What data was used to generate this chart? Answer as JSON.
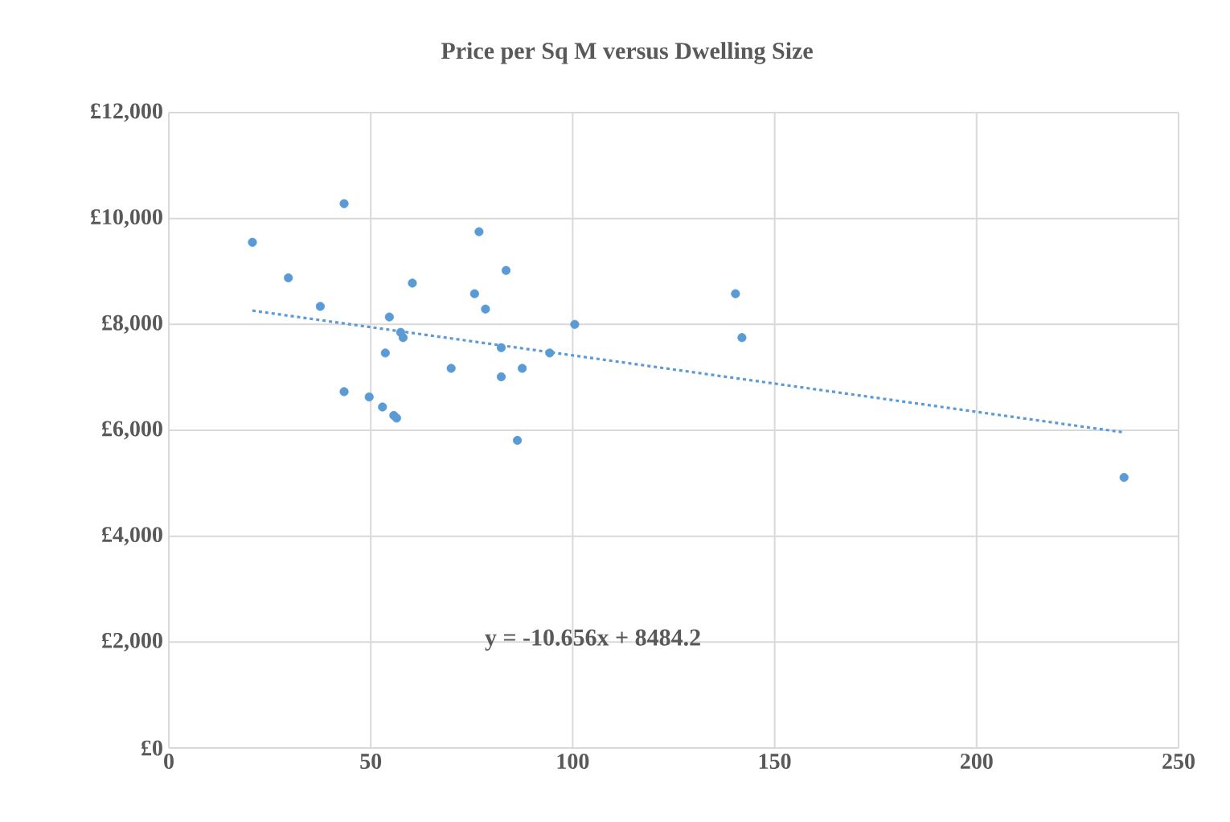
{
  "chart_data": {
    "type": "scatter",
    "title": "Price per Sq M versus Dwelling Size",
    "series": [
      {
        "color": "#5b9bd5",
        "marker": "circle",
        "x": [
          20.7,
          43.4,
          29.6,
          37.5,
          54.6,
          57.4,
          58.0,
          53.6,
          60.3,
          43.4,
          49.6,
          52.9,
          55.7,
          56.4,
          69.9,
          76.8,
          83.5,
          75.7,
          78.4,
          82.3,
          82.3,
          87.5,
          86.3,
          94.3,
          100.5,
          140.3,
          141.9,
          236.5
        ],
        "values": [
          9550,
          10280,
          8880,
          8340,
          8140,
          7850,
          7750,
          7460,
          8780,
          6730,
          6630,
          6440,
          6280,
          6230,
          7170,
          9750,
          9020,
          8580,
          8290,
          7560,
          7010,
          7170,
          5810,
          7460,
          8000,
          8580,
          7750,
          5110
        ]
      },
      {
        "type": "line",
        "color": "#5b9bd5",
        "marker": "none",
        "line_style": "dotted",
        "x": [
          20.7,
          236.5
        ],
        "values": [
          8260,
          5960
        ]
      }
    ],
    "annotations": [
      "y = -10.656x + 8484.2"
    ],
    "xlim": [
      0,
      250
    ],
    "xticks": [
      0,
      50,
      100,
      150,
      200,
      250
    ],
    "ylim": [
      0,
      12000
    ],
    "yticks": [
      {
        "value": 0,
        "label": "£0"
      },
      {
        "value": 2000,
        "label": "£2,000"
      },
      {
        "value": 4000,
        "label": "£4,000"
      },
      {
        "value": 6000,
        "label": "£6,000"
      },
      {
        "value": 8000,
        "label": "£8,000"
      },
      {
        "value": 10000,
        "label": "£10,000"
      },
      {
        "value": 12000,
        "label": "£12,000"
      }
    ],
    "grid": true,
    "legend": false
  }
}
